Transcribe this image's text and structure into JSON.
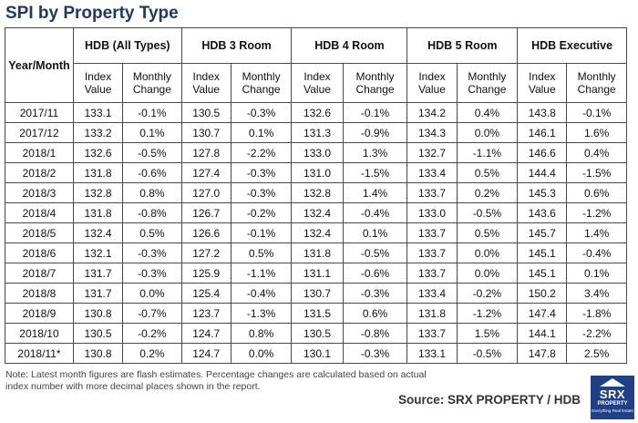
{
  "title": "SPI by Property Type",
  "table": {
    "corner_header": "Year/Month",
    "groups": [
      "HDB (All Types)",
      "HDB 3 Room",
      "HDB 4 Room",
      "HDB 5 Room",
      "HDB Executive"
    ],
    "subheaders": [
      "Index Value",
      "Monthly Change"
    ],
    "rows": [
      [
        "2017/11",
        "133.1",
        "-0.1%",
        "130.5",
        "-0.3%",
        "132.6",
        "-0.1%",
        "134.2",
        "0.4%",
        "143.8",
        "-0.1%"
      ],
      [
        "2017/12",
        "133.2",
        "0.1%",
        "130.7",
        "0.1%",
        "131.3",
        "-0.9%",
        "134.3",
        "0.0%",
        "146.1",
        "1.6%"
      ],
      [
        "2018/1",
        "132.6",
        "-0.5%",
        "127.8",
        "-2.2%",
        "133.0",
        "1.3%",
        "132.7",
        "-1.1%",
        "146.6",
        "0.4%"
      ],
      [
        "2018/2",
        "131.8",
        "-0.6%",
        "127.4",
        "-0.3%",
        "131.0",
        "-1.5%",
        "133.4",
        "0.5%",
        "144.4",
        "-1.5%"
      ],
      [
        "2018/3",
        "132.8",
        "0.8%",
        "127.0",
        "-0.3%",
        "132.8",
        "1.4%",
        "133.7",
        "0.2%",
        "145.3",
        "0.6%"
      ],
      [
        "2018/4",
        "131.8",
        "-0.8%",
        "126.7",
        "-0.2%",
        "132.4",
        "-0.4%",
        "133.0",
        "-0.5%",
        "143.6",
        "-1.2%"
      ],
      [
        "2018/5",
        "132.4",
        "0.5%",
        "126.6",
        "-0.1%",
        "132.4",
        "0.1%",
        "133.7",
        "0.5%",
        "145.7",
        "1.4%"
      ],
      [
        "2018/6",
        "132.1",
        "-0.3%",
        "127.2",
        "0.5%",
        "131.8",
        "-0.5%",
        "133.7",
        "0.0%",
        "145.1",
        "-0.4%"
      ],
      [
        "2018/7",
        "131.7",
        "-0.3%",
        "125.9",
        "-1.1%",
        "131.1",
        "-0.6%",
        "133.7",
        "0.0%",
        "145.1",
        "0.1%"
      ],
      [
        "2018/8",
        "131.7",
        "0.0%",
        "125.4",
        "-0.4%",
        "130.7",
        "-0.3%",
        "133.4",
        "-0.2%",
        "150.2",
        "3.4%"
      ],
      [
        "2018/9",
        "130.8",
        "-0.7%",
        "123.7",
        "-1.3%",
        "131.5",
        "0.6%",
        "131.8",
        "-1.2%",
        "147.4",
        "-1.8%"
      ],
      [
        "2018/10",
        "130.5",
        "-0.2%",
        "124.7",
        "0.8%",
        "130.5",
        "-0.8%",
        "133.7",
        "1.5%",
        "144.1",
        "-2.2%"
      ],
      [
        "2018/11*",
        "130.8",
        "0.2%",
        "124.7",
        "0.0%",
        "130.1",
        "-0.3%",
        "133.1",
        "-0.5%",
        "147.8",
        "2.5%"
      ]
    ]
  },
  "note": "Note: Latest month figures are flash estimates. Percentage changes are calculated based on actual index number with more decimal places shown in the report.",
  "source": "Source:  SRX PROPERTY / HDB",
  "logo": {
    "brand": "SRX",
    "line1": "PROPERTY",
    "line2": "Everything Real Estate",
    "color": "#1f3f86"
  },
  "colors": {
    "title": "#1f3864",
    "grid": "#4a4a4a"
  }
}
